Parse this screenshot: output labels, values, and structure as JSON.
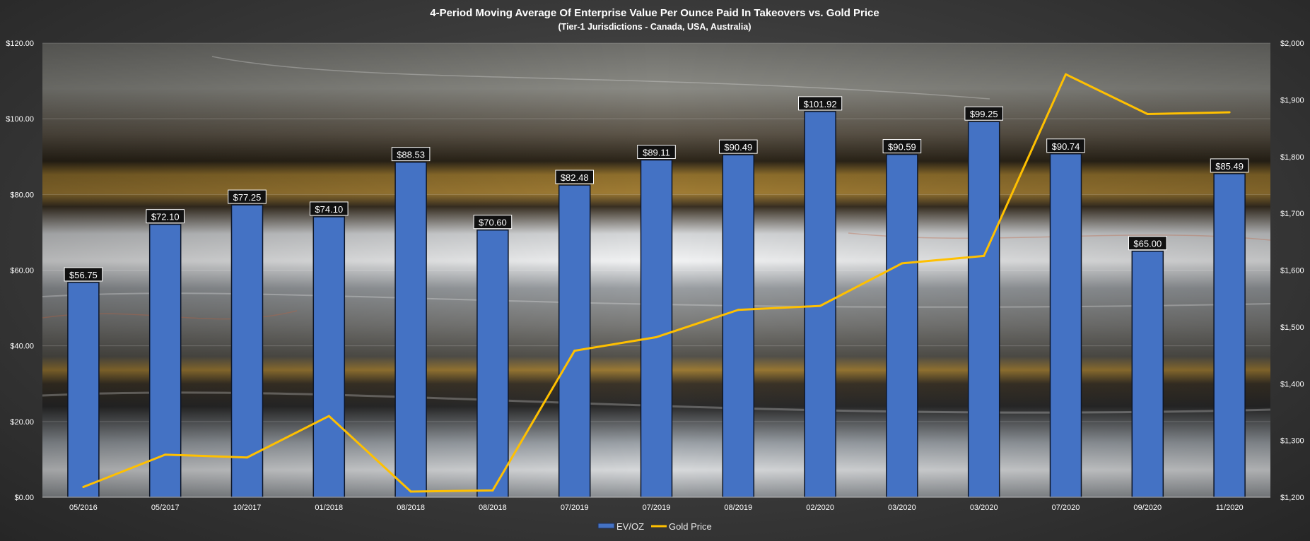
{
  "chart_data": {
    "type": "bar",
    "title": "4-Period Moving Average Of Enterprise Value Per Ounce Paid In Takeovers vs. Gold Price",
    "subtitle": "(Tier-1 Jurisdictions - Canada, USA, Australia)",
    "categories": [
      "05/2016",
      "05/2017",
      "10/2017",
      "01/2018",
      "08/2018",
      "08/2018",
      "07/2019",
      "07/2019",
      "08/2019",
      "02/2020",
      "03/2020",
      "03/2020",
      "07/2020",
      "09/2020",
      "11/2020"
    ],
    "series": [
      {
        "name": "EV/OZ",
        "kind": "bar",
        "axis": "left",
        "color": "#4472C4",
        "values": [
          56.75,
          72.1,
          77.25,
          74.1,
          88.53,
          70.6,
          82.48,
          89.11,
          90.49,
          101.92,
          90.59,
          99.25,
          90.74,
          65.0,
          85.49
        ],
        "labels": [
          "$56.75",
          "$72.10",
          "$77.25",
          "$74.10",
          "$88.53",
          "$70.60",
          "$82.48",
          "$89.11",
          "$90.49",
          "$101.92",
          "$90.59",
          "$99.25",
          "$90.74",
          "$65.00",
          "$85.49"
        ]
      },
      {
        "name": "Gold Price",
        "kind": "line",
        "axis": "right",
        "color": "#FFC000",
        "values": [
          1218,
          1275,
          1270,
          1343,
          1210,
          1212,
          1458,
          1482,
          1530,
          1537,
          1612,
          1625,
          1945,
          1875,
          1878
        ]
      }
    ],
    "y_left": {
      "ylim": [
        0,
        120
      ],
      "ticks": [
        "$0.00",
        "$20.00",
        "$40.00",
        "$60.00",
        "$80.00",
        "$100.00",
        "$120.00"
      ]
    },
    "y_right": {
      "ylim": [
        1200,
        2000
      ],
      "ticks": [
        "$1,200",
        "$1,300",
        "$1,400",
        "$1,500",
        "$1,600",
        "$1,700",
        "$1,800",
        "$1,900",
        "$2,000"
      ]
    },
    "grid": true,
    "legend": "bottom-center"
  }
}
